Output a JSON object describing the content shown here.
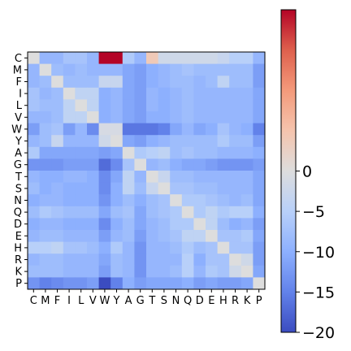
{
  "chart_data": {
    "type": "heatmap",
    "title": "",
    "xlabel": "",
    "ylabel": "",
    "x_categories": [
      "C",
      "M",
      "F",
      "I",
      "L",
      "V",
      "W",
      "Y",
      "A",
      "G",
      "T",
      "S",
      "N",
      "Q",
      "D",
      "E",
      "H",
      "R",
      "K",
      "P"
    ],
    "y_categories": [
      "C",
      "M",
      "F",
      "I",
      "L",
      "V",
      "W",
      "Y",
      "A",
      "G",
      "T",
      "S",
      "N",
      "Q",
      "D",
      "E",
      "H",
      "R",
      "K",
      "P"
    ],
    "values": [
      [
        0,
        -9,
        -9,
        -7,
        -7,
        -9,
        20,
        20,
        -6,
        -9,
        4,
        -2,
        -2,
        -2,
        -2,
        -2,
        -3,
        -5,
        -5,
        -9
      ],
      [
        -9,
        0,
        -8,
        -9,
        -8,
        -9,
        -9,
        -9,
        -11,
        -12,
        -10,
        -9,
        -8,
        -7,
        -8,
        -8,
        -8,
        -8,
        -8,
        -12
      ],
      [
        -9,
        -8,
        0,
        -8,
        -8,
        -8,
        -3,
        -3,
        -11,
        -12,
        -10,
        -9,
        -8,
        -8,
        -9,
        -8,
        -4,
        -8,
        -8,
        -12
      ],
      [
        -7,
        -9,
        -8,
        0,
        -4,
        -4,
        -10,
        -9,
        -11,
        -12,
        -9,
        -10,
        -9,
        -8,
        -9,
        -9,
        -9,
        -9,
        -9,
        -11
      ],
      [
        -7,
        -8,
        -8,
        -4,
        0,
        -4,
        -10,
        -9,
        -11,
        -12,
        -9,
        -10,
        -9,
        -8,
        -9,
        -9,
        -9,
        -9,
        -9,
        -11
      ],
      [
        -9,
        -9,
        -8,
        -4,
        -4,
        0,
        -10,
        -9,
        -11,
        -12,
        -10,
        -10,
        -9,
        -8,
        -9,
        -9,
        -9,
        -9,
        -9,
        -11
      ],
      [
        -12,
        -8,
        -7,
        -12,
        -9,
        -14,
        -1,
        -1,
        -16,
        -16,
        -16,
        -15,
        -11,
        -9,
        -11,
        -10,
        -7,
        -9,
        -10,
        -15
      ],
      [
        -9,
        -8,
        -3,
        -9,
        -9,
        -9,
        -2,
        0,
        -11,
        -12,
        -10,
        -9,
        -8,
        -8,
        -8,
        -8,
        -6,
        -8,
        -8,
        -12
      ],
      [
        -6,
        -11,
        -11,
        -11,
        -11,
        -11,
        -12,
        -11,
        0,
        -6,
        -5,
        -4,
        -8,
        -7,
        -8,
        -8,
        -9,
        -9,
        -9,
        -10
      ],
      [
        -13,
        -13,
        -13,
        -12,
        -12,
        -12,
        -17,
        -14,
        -7,
        0,
        -9,
        -8,
        -10,
        -11,
        -11,
        -12,
        -13,
        -13,
        -13,
        -12
      ],
      [
        -9,
        -10,
        -10,
        -9,
        -9,
        -10,
        -14,
        -11,
        -4,
        -9,
        0,
        -3,
        -8,
        -8,
        -9,
        -9,
        -9,
        -9,
        -9,
        -11
      ],
      [
        -8,
        -10,
        -9,
        -10,
        -10,
        -10,
        -14,
        -10,
        -4,
        -8,
        -3,
        0,
        -7,
        -7,
        -8,
        -8,
        -9,
        -9,
        -9,
        -11
      ],
      [
        -10,
        -9,
        -9,
        -10,
        -10,
        -10,
        -13,
        -10,
        -8,
        -10,
        -8,
        -7,
        0,
        -6,
        -6,
        -7,
        -8,
        -9,
        -8,
        -11
      ],
      [
        -8,
        -6,
        -7,
        -8,
        -8,
        -8,
        -11,
        -8,
        -7,
        -11,
        -8,
        -7,
        -6,
        0,
        -6,
        -4,
        -6,
        -5,
        -5,
        -10
      ],
      [
        -10,
        -9,
        -9,
        -10,
        -10,
        -10,
        -14,
        -10,
        -8,
        -11,
        -9,
        -8,
        -6,
        -6,
        0,
        -4,
        -8,
        -10,
        -9,
        -12
      ],
      [
        -9,
        -8,
        -8,
        -9,
        -9,
        -9,
        -12,
        -9,
        -8,
        -12,
        -9,
        -8,
        -7,
        -4,
        -4,
        0,
        -7,
        -7,
        -6,
        -11
      ],
      [
        -5,
        -5,
        -4,
        -7,
        -7,
        -8,
        -10,
        -6,
        -9,
        -13,
        -9,
        -9,
        -8,
        -6,
        -8,
        -7,
        0,
        -7,
        -7,
        -12
      ],
      [
        -9,
        -8,
        -8,
        -9,
        -9,
        -9,
        -11,
        -8,
        -9,
        -13,
        -9,
        -9,
        -9,
        -5,
        -10,
        -7,
        -7,
        0,
        -2,
        -12
      ],
      [
        -8,
        -8,
        -8,
        -9,
        -9,
        -9,
        -12,
        -8,
        -9,
        -13,
        -9,
        -9,
        -8,
        -5,
        -9,
        -6,
        -7,
        -2,
        0,
        -11
      ],
      [
        -13,
        -15,
        -14,
        -13,
        -13,
        -12,
        -20,
        -15,
        -10,
        -12,
        -11,
        -11,
        -11,
        -10,
        -12,
        -11,
        -12,
        -12,
        -11,
        0
      ]
    ],
    "colormap": "coolwarm",
    "vmin": -20,
    "vmax": 20,
    "colorbar": {
      "ticks": [
        0,
        -5,
        -10,
        -15,
        -20
      ],
      "tick_labels": [
        "0",
        "−5",
        "−10",
        "−15",
        "−20"
      ]
    },
    "grid": false,
    "legend": "none"
  }
}
